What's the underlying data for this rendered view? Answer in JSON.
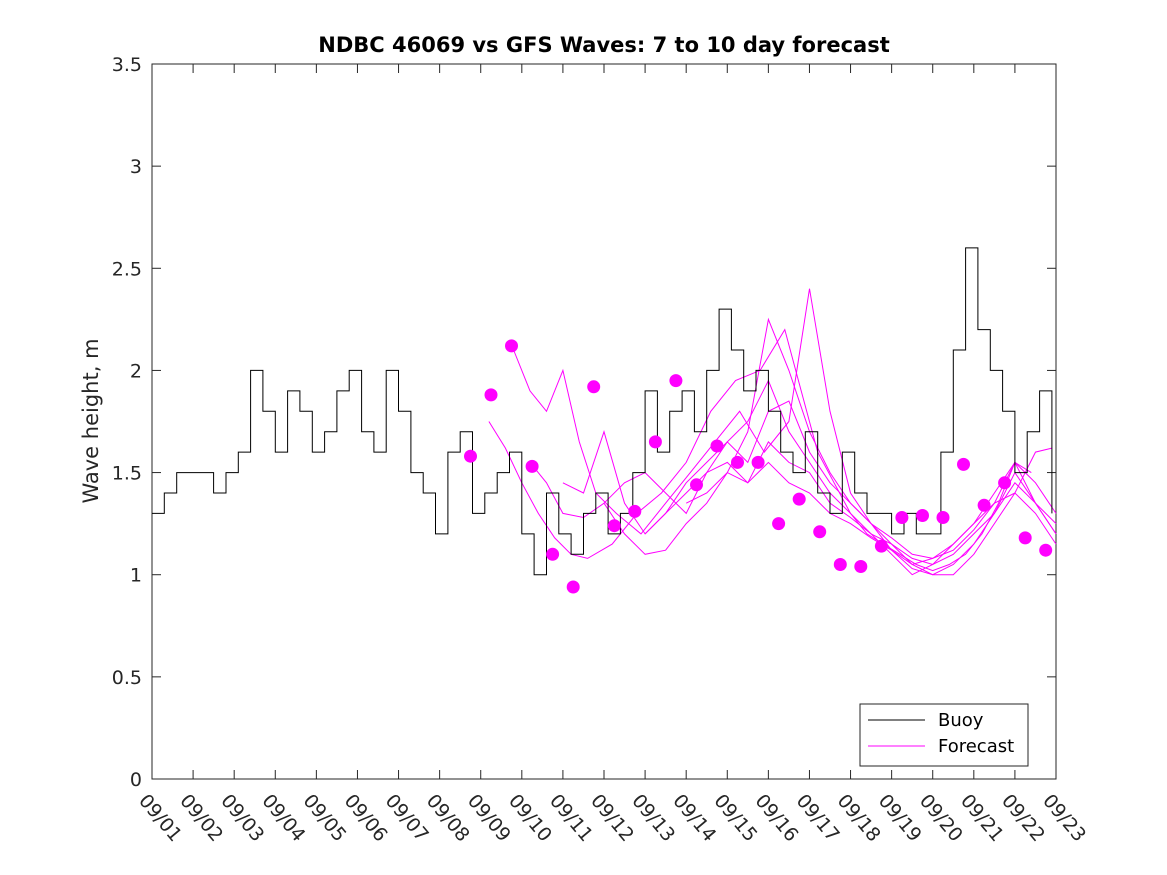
{
  "chart_data": {
    "type": "line",
    "title": "NDBC 46069 vs GFS Waves: 7 to 10 day forecast",
    "xlabel": "",
    "ylabel": "Wave height, m",
    "x_unit": "day index (0 = 09/01)",
    "xlim": [
      0,
      22
    ],
    "ylim": [
      0,
      3.5
    ],
    "x_ticks": [
      0,
      1,
      2,
      3,
      4,
      5,
      6,
      7,
      8,
      9,
      10,
      11,
      12,
      13,
      14,
      15,
      16,
      17,
      18,
      19,
      20,
      21,
      22
    ],
    "x_tick_labels": [
      "09/01",
      "09/02",
      "09/03",
      "09/04",
      "09/05",
      "09/06",
      "09/07",
      "09/08",
      "09/09",
      "09/10",
      "09/11",
      "09/12",
      "09/13",
      "09/14",
      "09/15",
      "09/16",
      "09/17",
      "09/18",
      "09/19",
      "09/20",
      "09/21",
      "09/22",
      "09/23"
    ],
    "y_ticks": [
      0,
      0.5,
      1,
      1.5,
      2,
      2.5,
      3,
      3.5
    ],
    "y_tick_labels": [
      "0",
      "0.5",
      "1",
      "1.5",
      "2",
      "2.5",
      "3",
      "3.5"
    ],
    "legend": {
      "location": "bottom-right",
      "entries": [
        "Buoy",
        "Forecast"
      ]
    },
    "colors": {
      "buoy": "#000000",
      "forecast": "#ff00ff",
      "axes": "#262626",
      "background": "#ffffff"
    },
    "series": [
      {
        "name": "Buoy",
        "x": [
          0,
          0.3,
          0.6,
          0.9,
          1.2,
          1.5,
          1.8,
          2.1,
          2.4,
          2.7,
          3.0,
          3.3,
          3.6,
          3.9,
          4.2,
          4.5,
          4.8,
          5.1,
          5.4,
          5.7,
          6.0,
          6.3,
          6.6,
          6.9,
          7.2,
          7.5,
          7.8,
          8.1,
          8.4,
          8.7,
          9.0,
          9.3,
          9.6,
          9.9,
          10.2,
          10.5,
          10.8,
          11.1,
          11.4,
          11.7,
          12.0,
          12.3,
          12.6,
          12.9,
          13.2,
          13.5,
          13.8,
          14.1,
          14.4,
          14.7,
          15.0,
          15.3,
          15.6,
          15.9,
          16.2,
          16.5,
          16.8,
          17.1,
          17.4,
          17.7,
          18.0,
          18.3,
          18.6,
          18.9,
          19.2,
          19.5,
          19.8,
          20.1,
          20.4,
          20.7,
          21.0,
          21.3,
          21.6,
          21.9
        ],
        "y": [
          1.3,
          1.4,
          1.5,
          1.5,
          1.5,
          1.4,
          1.5,
          1.6,
          2.0,
          1.8,
          1.6,
          1.9,
          1.8,
          1.6,
          1.7,
          1.9,
          2.0,
          1.7,
          1.6,
          2.0,
          1.8,
          1.5,
          1.4,
          1.2,
          1.6,
          1.7,
          1.3,
          1.4,
          1.5,
          1.6,
          1.2,
          1.0,
          1.4,
          1.2,
          1.1,
          1.3,
          1.4,
          1.2,
          1.3,
          1.5,
          1.9,
          1.6,
          1.8,
          1.9,
          1.7,
          2.0,
          2.3,
          2.1,
          1.9,
          2.0,
          1.8,
          1.6,
          1.5,
          1.7,
          1.4,
          1.3,
          1.6,
          1.4,
          1.3,
          1.3,
          1.2,
          1.3,
          1.2,
          1.2,
          1.6,
          2.1,
          2.6,
          2.2,
          2.0,
          1.8,
          1.5,
          1.7,
          1.9,
          1.3
        ]
      }
    ],
    "forecast_points": {
      "name": "Forecast",
      "x": [
        7.75,
        8.25,
        8.75,
        9.25,
        9.75,
        10.25,
        10.75,
        11.25,
        11.75,
        12.25,
        12.75,
        13.25,
        13.75,
        14.25,
        14.75,
        15.25,
        15.75,
        16.25,
        16.75,
        17.25,
        17.75,
        18.25,
        18.75,
        19.25,
        19.75,
        20.25,
        20.75,
        21.25,
        21.75
      ],
      "y": [
        1.58,
        1.88,
        2.12,
        1.53,
        1.1,
        0.94,
        1.92,
        1.24,
        1.31,
        1.65,
        1.95,
        1.44,
        1.63,
        1.55,
        1.55,
        1.25,
        1.37,
        1.21,
        1.05,
        1.04,
        1.14,
        1.28,
        1.29,
        1.28,
        1.54,
        1.34,
        1.45,
        1.18,
        1.12
      ]
    },
    "forecast_runs": [
      {
        "x": [
          8.2,
          8.6,
          9.0,
          9.4,
          9.8,
          10.2,
          10.6,
          11.2,
          11.8,
          12.4,
          13.0,
          13.6,
          14.2,
          14.8,
          15.4,
          15.8,
          16.2,
          16.6,
          17.0,
          17.4,
          17.8,
          18.2,
          18.6,
          19.0,
          19.4,
          19.8,
          20.2,
          20.6,
          21.0,
          21.4
        ],
        "y": [
          1.75,
          1.62,
          1.45,
          1.3,
          1.18,
          1.1,
          1.08,
          1.15,
          1.3,
          1.4,
          1.55,
          1.8,
          1.95,
          2.0,
          2.2,
          1.9,
          1.6,
          1.45,
          1.3,
          1.2,
          1.15,
          1.1,
          1.05,
          1.02,
          1.05,
          1.1,
          1.2,
          1.35,
          1.55,
          1.5
        ]
      },
      {
        "x": [
          8.8,
          9.2,
          9.6,
          10.0,
          10.4,
          10.8,
          11.3,
          11.9,
          12.5,
          13.1,
          13.7,
          14.3,
          14.9,
          15.5,
          16.0,
          16.5,
          17.0,
          17.5,
          18.0,
          18.5,
          19.0,
          19.5,
          20.0,
          20.5,
          21.0,
          21.5,
          21.9
        ],
        "y": [
          2.1,
          1.9,
          1.8,
          2.0,
          1.65,
          1.4,
          1.3,
          1.2,
          1.35,
          1.5,
          1.65,
          1.8,
          1.6,
          1.75,
          2.4,
          1.8,
          1.4,
          1.25,
          1.15,
          1.05,
          1.0,
          1.0,
          1.1,
          1.25,
          1.4,
          1.6,
          1.62
        ]
      },
      {
        "x": [
          9.2,
          9.6,
          10.0,
          10.5,
          11.0,
          11.5,
          12.0,
          12.5,
          13.0,
          13.5,
          14.0,
          14.5,
          15.0,
          15.5,
          16.0,
          16.5,
          17.0,
          17.5,
          18.0,
          18.5,
          19.0,
          19.5,
          20.0,
          20.5,
          21.0,
          21.5,
          22.0
        ],
        "y": [
          1.55,
          1.45,
          1.3,
          1.28,
          1.35,
          1.2,
          1.1,
          1.12,
          1.25,
          1.35,
          1.5,
          1.7,
          2.25,
          2.0,
          1.7,
          1.5,
          1.35,
          1.25,
          1.12,
          1.03,
          1.0,
          1.05,
          1.15,
          1.3,
          1.5,
          1.35,
          1.2
        ]
      },
      {
        "x": [
          10.0,
          10.5,
          11.0,
          11.5,
          12.0,
          12.5,
          13.0,
          13.5,
          14.0,
          14.5,
          15.0,
          15.5,
          16.0,
          16.5,
          17.0,
          17.5,
          18.0,
          18.5,
          19.0,
          19.5,
          20.0,
          20.5,
          21.0,
          21.5,
          22.0
        ],
        "y": [
          1.45,
          1.4,
          1.7,
          1.35,
          1.2,
          1.3,
          1.45,
          1.55,
          1.65,
          1.75,
          1.95,
          1.7,
          1.55,
          1.4,
          1.3,
          1.2,
          1.1,
          1.0,
          1.05,
          1.15,
          1.25,
          1.4,
          1.55,
          1.35,
          1.25
        ]
      },
      {
        "x": [
          11.0,
          11.5,
          12.0,
          12.5,
          13.0,
          13.5,
          14.0,
          14.5,
          15.0,
          15.5,
          16.0,
          16.5,
          17.0,
          17.5,
          18.0,
          18.5,
          19.0,
          19.5,
          20.0,
          20.5,
          21.0,
          21.5,
          22.0
        ],
        "y": [
          1.35,
          1.45,
          1.5,
          1.4,
          1.3,
          1.5,
          1.65,
          1.55,
          1.8,
          1.85,
          1.6,
          1.45,
          1.35,
          1.25,
          1.18,
          1.1,
          1.08,
          1.12,
          1.22,
          1.35,
          1.55,
          1.45,
          1.3
        ]
      },
      {
        "x": [
          12.0,
          12.5,
          13.0,
          13.5,
          14.0,
          14.5,
          15.0,
          15.5,
          16.0,
          16.5,
          17.0,
          17.5,
          18.0,
          18.5,
          19.0,
          19.5,
          20.0,
          20.5,
          21.0,
          21.5,
          22.0
        ],
        "y": [
          1.2,
          1.3,
          1.4,
          1.5,
          1.55,
          1.45,
          1.65,
          1.55,
          1.5,
          1.35,
          1.28,
          1.2,
          1.15,
          1.08,
          1.05,
          1.1,
          1.2,
          1.3,
          1.45,
          1.35,
          1.2
        ]
      },
      {
        "x": [
          13.0,
          13.5,
          14.0,
          14.5,
          15.0,
          15.5,
          16.0,
          16.5,
          17.0,
          17.5,
          18.0,
          18.5,
          19.0,
          19.5,
          20.0,
          20.5,
          21.0,
          21.5,
          22.0
        ],
        "y": [
          1.35,
          1.4,
          1.5,
          1.45,
          1.55,
          1.45,
          1.4,
          1.3,
          1.25,
          1.18,
          1.12,
          1.05,
          1.08,
          1.15,
          1.25,
          1.35,
          1.4,
          1.3,
          1.15
        ]
      }
    ]
  }
}
